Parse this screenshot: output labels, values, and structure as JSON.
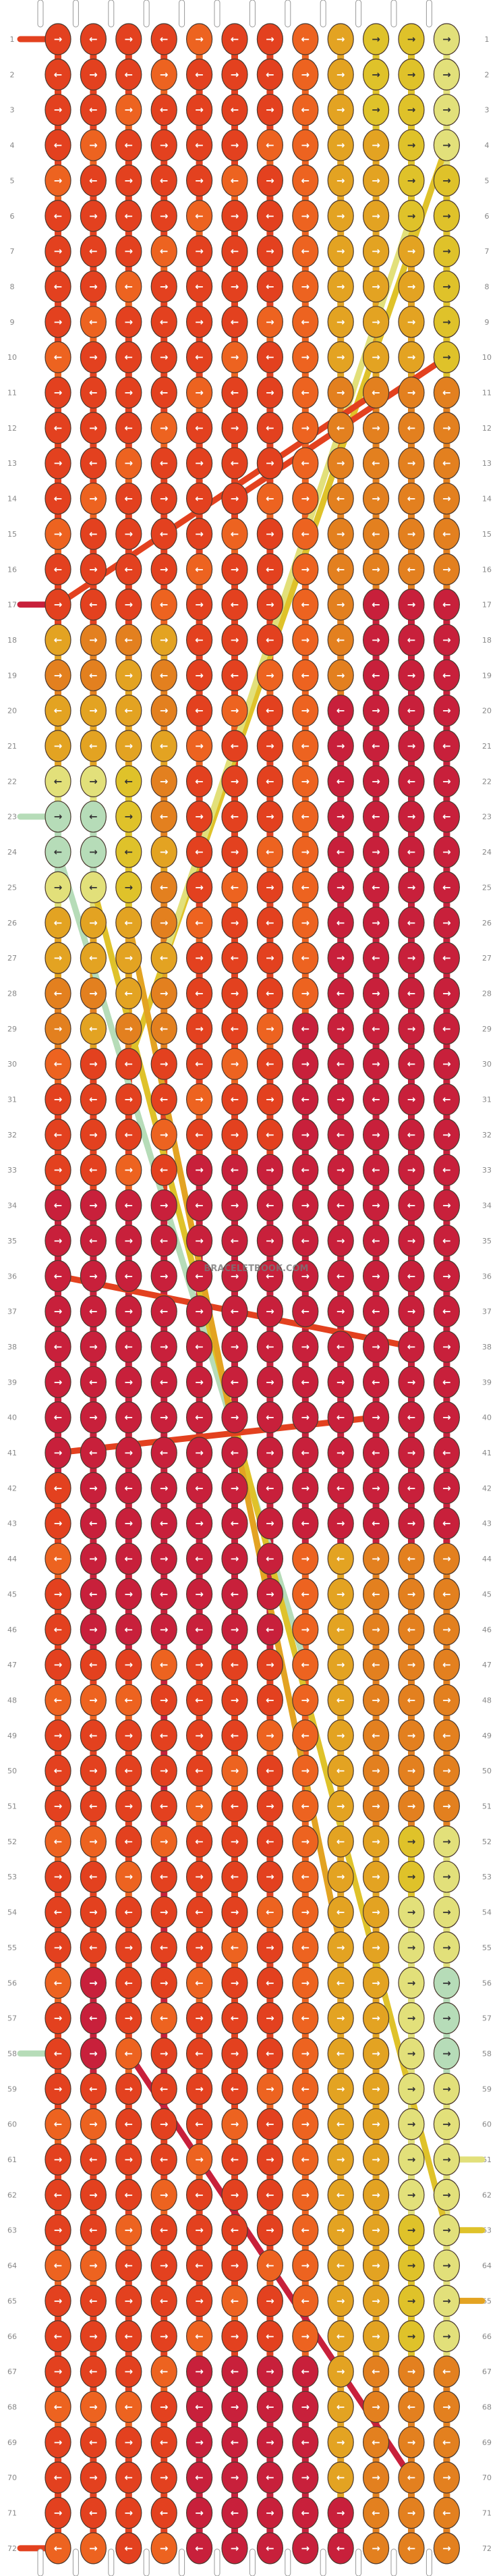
{
  "pattern": {
    "watermark": "BRACELETBOOK.COM",
    "strand_count": 12,
    "row_count": 72,
    "colors": {
      "red": "#c8203b",
      "red_orange": "#e3411f",
      "orange": "#ed6320",
      "dark_orange": "#e3801f",
      "amber": "#e3a322",
      "gold": "#dfc22a",
      "light_yellow": "#e2e07a",
      "mint": "#b6dcb8"
    },
    "start_colors": [
      "red_orange",
      "orange",
      "orange",
      "orange",
      "orange",
      "orange",
      "orange",
      "dark_orange",
      "amber",
      "gold",
      "light_yellow",
      "light_yellow"
    ],
    "row_labels": [
      "1",
      "2",
      "3",
      "4",
      "5",
      "6",
      "7",
      "8",
      "9",
      "10",
      "11",
      "12",
      "13",
      "14",
      "15",
      "16",
      "17",
      "18",
      "19",
      "20",
      "21",
      "22",
      "23",
      "24",
      "25",
      "26",
      "27",
      "28",
      "29",
      "30",
      "31",
      "32",
      "33",
      "34",
      "35",
      "36",
      "37",
      "38",
      "39",
      "40",
      "41",
      "42",
      "43",
      "44",
      "45",
      "46",
      "47",
      "48",
      "49",
      "50",
      "51",
      "52",
      "53",
      "54",
      "55",
      "56",
      "57",
      "58",
      "59",
      "60",
      "61",
      "62",
      "63",
      "64",
      "65",
      "66",
      "67",
      "68",
      "69",
      "70",
      "71",
      "72"
    ],
    "knot_symbols": {
      "forward": "→",
      "backward": "←"
    }
  }
}
